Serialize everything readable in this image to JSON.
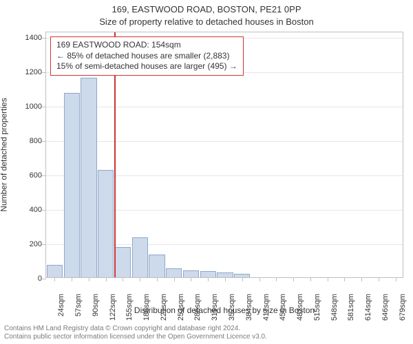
{
  "title_line_1": "169, EASTWOOD ROAD, BOSTON, PE21 0PP",
  "title_line_2": "Size of property relative to detached houses in Boston",
  "yaxis_label": "Number of detached properties",
  "xaxis_label": "Distribution of detached houses by size in Boston",
  "plot": {
    "background_color": "#ffffff",
    "border_color": "#bfbfc0",
    "grid_color": "#e6e6e7",
    "bar_fill": "#cddaeb",
    "bar_stroke": "#8fa8c7",
    "reference_color": "#cc3333",
    "ylim": [
      0,
      1430
    ],
    "yticks": [
      0,
      200,
      400,
      600,
      800,
      1000,
      1200,
      1400
    ],
    "categories": [
      "24sqm",
      "57sqm",
      "90sqm",
      "122sqm",
      "155sqm",
      "188sqm",
      "221sqm",
      "253sqm",
      "286sqm",
      "319sqm",
      "352sqm",
      "384sqm",
      "417sqm",
      "450sqm",
      "483sqm",
      "515sqm",
      "548sqm",
      "581sqm",
      "614sqm",
      "646sqm",
      "679sqm"
    ],
    "values": [
      70,
      1070,
      1160,
      625,
      175,
      230,
      130,
      50,
      40,
      35,
      30,
      20,
      0,
      0,
      0,
      0,
      0,
      0,
      0,
      0,
      0
    ],
    "reference_index": 4,
    "annotation": {
      "line1": "169 EASTWOOD ROAD: 154sqm",
      "line2": "← 85% of detached houses are smaller (2,883)",
      "line3": "15% of semi-detached houses are larger (495) →"
    }
  },
  "footer_line_1": "Contains HM Land Registry data © Crown copyright and database right 2024.",
  "footer_line_2": "Contains public sector information licensed under the Open Government Licence v3.0.",
  "fonts": {
    "title": 13,
    "axis_label": 12,
    "tick": 11,
    "annotation": 12,
    "footer": 10
  },
  "colors": {
    "text": "#333333",
    "footer_text": "#7a7a7a",
    "background": "#ffffff"
  }
}
